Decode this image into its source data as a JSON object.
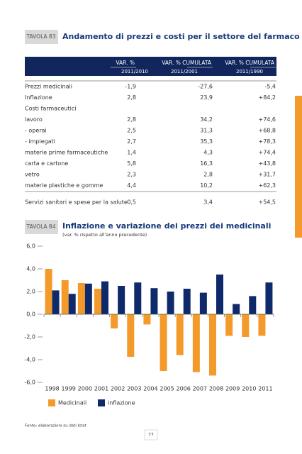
{
  "table": {
    "tag": "TAVOLA 83",
    "title": "Andamento di prezzi e costi per il settore del farmaco",
    "columns": [
      {
        "label": "VAR. %",
        "period": "2011/2010"
      },
      {
        "label": "VAR. % CUMULATA",
        "period": "2011/2001"
      },
      {
        "label": "VAR. % CUMULATA",
        "period": "2011/1990"
      }
    ],
    "rows": [
      [
        "Prezzi medicinali",
        "-1,9",
        "-27,6",
        "-5,4"
      ],
      [
        "Inflazione",
        "2,8",
        "23,9",
        "+84,2"
      ],
      [
        "Costi farmaceutici"
      ],
      [
        "lavoro",
        "2,8",
        "34,2",
        "+74,6"
      ],
      [
        "- operai",
        "2,5",
        "31,3",
        "+68,8"
      ],
      [
        "- impiegati",
        "2,7",
        "35,3",
        "+78,3"
      ],
      [
        "materie prime farmaceutiche",
        "1,4",
        "4,3",
        "+74,4"
      ],
      [
        "carta e cartone",
        "5,8",
        "16,3",
        "+43,8"
      ],
      [
        "vetro",
        "2,3",
        "2,8",
        "+31,7"
      ],
      [
        "materie plastiche e gomme",
        "4,4",
        "10,2",
        "+62,3"
      ],
      [
        "Servizi sanitari e spese per la salute",
        "0,5",
        "3,4",
        "+54,5"
      ]
    ]
  },
  "chart_data": {
    "type": "bar",
    "tag": "TAVOLA 84",
    "title": "Inflazione e variazione dei prezzi dei medicinali",
    "subtitle": "(var. % rispetto all'anno precedente)",
    "categories": [
      "1998",
      "1999",
      "2000",
      "2001",
      "2002",
      "2003",
      "2004",
      "2005",
      "2006",
      "2007",
      "2008",
      "2009",
      "2010",
      "2011"
    ],
    "series": [
      {
        "name": "Medicinali",
        "color": "#f39a2b",
        "values": [
          4.0,
          3.0,
          2.75,
          2.25,
          -1.25,
          -3.75,
          -0.9,
          -5.0,
          -3.6,
          -5.1,
          -5.4,
          -1.9,
          -2.0,
          -1.9
        ]
      },
      {
        "name": "inflazione",
        "color": "#0f2a6b",
        "values": [
          2.1,
          1.8,
          2.7,
          2.9,
          2.5,
          2.8,
          2.3,
          2.0,
          2.25,
          1.9,
          3.5,
          0.9,
          1.6,
          2.8
        ]
      }
    ],
    "ylim": [
      -6,
      6
    ],
    "yticks": [
      {
        "value": 6,
        "label": "6,0"
      },
      {
        "value": 4,
        "label": "4,0"
      },
      {
        "value": 2,
        "label": "2,0"
      },
      {
        "value": 0,
        "label": "0,0"
      },
      {
        "value": -2,
        "label": "-2,0"
      },
      {
        "value": -4,
        "label": "-4,0"
      },
      {
        "value": -6,
        "label": "-6,0"
      }
    ]
  },
  "source": "Fonte: elaborazioni su dati Istat",
  "page_number": "77"
}
